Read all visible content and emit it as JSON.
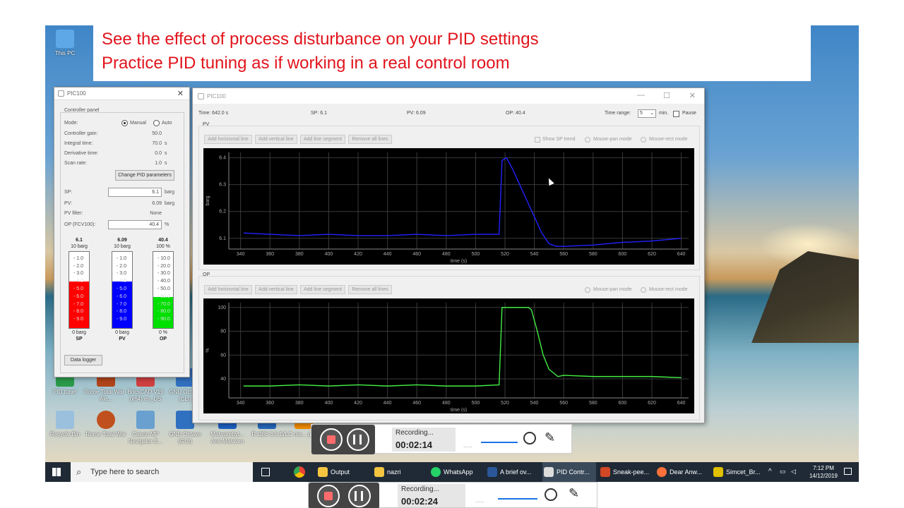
{
  "banner": {
    "line1": "See the effect of process disturbance on your PID settings",
    "line2": "Practice PID tuning as if working in a real control room"
  },
  "desktop_icons": [
    {
      "label": "This PC"
    },
    {
      "label": "PID tuner"
    },
    {
      "label": "Rome Total War - Ale..."
    },
    {
      "label": "BricsCAD V19 (x64) en_US"
    },
    {
      "label": "GNU Octave (CLI)"
    },
    {
      "label": "Recycle Bin"
    },
    {
      "label": "Rome Total War"
    },
    {
      "label": "Canon MP Navigator E..."
    },
    {
      "label": "GNU Octave (GUI)"
    },
    {
      "label": "Malwarebyt... Anti-Malware"
    },
    {
      "label": "R i386 3.6.1"
    },
    {
      "label": "VLC ma... playe..."
    }
  ],
  "small_window": {
    "title": "PIC100",
    "panel_label": "Controller panel",
    "mode_label": "Mode:",
    "mode_manual": "Manual",
    "mode_auto": "Auto",
    "gain_label": "Controller gain:",
    "gain_value": "50.0",
    "integral_label": "Integral time:",
    "integral_value": "70.0",
    "integral_unit": "s",
    "derivative_label": "Derivative time:",
    "derivative_value": "0.0",
    "derivative_unit": "s",
    "scan_label": "Scan rate:",
    "scan_value": "1.0",
    "scan_unit": "s",
    "change_pid_button": "Change PID parameters",
    "sp_label": "SP:",
    "sp_value": "6.1",
    "sp_unit": "barg",
    "pv_label": "PV:",
    "pv_value": "6.09",
    "pv_unit": "barg",
    "pv_filter_label": "PV filter:",
    "pv_filter_value": "None",
    "op_label": "OP (FCV100):",
    "op_value": "40.4",
    "op_unit": "%",
    "bars": [
      {
        "value": "6.1",
        "unit": "10 barg",
        "bottom": "0 barg",
        "name": "SP",
        "fill": 0.61,
        "color": "#ff0000",
        "ticks": [
          "9.0",
          "8.0",
          "7.0",
          "6.0",
          "5.0",
          "4.0",
          "3.0",
          "2.0",
          "1.0"
        ]
      },
      {
        "value": "6.09",
        "unit": "10 barg",
        "bottom": "0 barg",
        "name": "PV",
        "fill": 0.609,
        "color": "#0000ff",
        "ticks": [
          "9.0",
          "8.0",
          "7.0",
          "6.0",
          "5.0",
          "4.0",
          "3.0",
          "2.0",
          "1.0"
        ]
      },
      {
        "value": "40.4",
        "unit": "100 %",
        "bottom": "0 %",
        "name": "OP",
        "fill": 0.404,
        "color": "#00e000",
        "ticks": [
          "90.0",
          "80.0",
          "70.0",
          "60.0",
          "50.0",
          "40.0",
          "30.0",
          "20.0",
          "10.0"
        ]
      }
    ],
    "data_logger_button": "Data logger"
  },
  "big_window": {
    "title": "PIC100",
    "time_text": "Time: 642.0 s",
    "sp_text": "SP: 6.1",
    "pv_text": "PV: 6.09",
    "op_text": "OP: 40.4",
    "time_range_label": "Time range:",
    "time_range_value": "5",
    "time_range_unit": "min.",
    "pause_label": "Pause",
    "pv_group_label": "PV",
    "op_group_label": "OP",
    "toolbar_buttons": [
      "Add horizontal line",
      "Add vertical line",
      "Add line segment",
      "Remove all lines"
    ],
    "show_sp_trend": "Show SP trend",
    "mouse_pan": "Mouse-pan mode",
    "mouse_rect": "Mouse-rect mode"
  },
  "chart_data": [
    {
      "type": "line",
      "title": "PV",
      "xlabel": "time (s)",
      "ylabel": "barg",
      "xlim": [
        332,
        645
      ],
      "ylim": [
        6.06,
        6.42
      ],
      "x_ticks": [
        340,
        360,
        380,
        400,
        420,
        440,
        460,
        480,
        500,
        520,
        540,
        560,
        580,
        600,
        620,
        640
      ],
      "y_ticks": [
        6.1,
        6.2,
        6.3,
        6.4
      ],
      "series": [
        {
          "color": "#2222ff",
          "x": [
            342,
            360,
            380,
            400,
            420,
            440,
            460,
            480,
            500,
            516,
            518,
            521,
            525,
            530,
            535,
            540,
            545,
            550,
            555,
            560,
            580,
            600,
            620,
            640
          ],
          "y": [
            6.12,
            6.115,
            6.11,
            6.115,
            6.11,
            6.11,
            6.115,
            6.11,
            6.115,
            6.115,
            6.39,
            6.4,
            6.36,
            6.3,
            6.24,
            6.18,
            6.12,
            6.08,
            6.07,
            6.07,
            6.075,
            6.085,
            6.09,
            6.1
          ]
        }
      ]
    },
    {
      "type": "line",
      "title": "OP",
      "xlabel": "time (s)",
      "ylabel": "%",
      "xlim": [
        332,
        645
      ],
      "ylim": [
        24,
        104
      ],
      "x_ticks": [
        340,
        360,
        380,
        400,
        420,
        440,
        460,
        480,
        500,
        520,
        540,
        560,
        580,
        600,
        620,
        640
      ],
      "y_ticks": [
        40,
        60,
        80,
        100
      ],
      "series": [
        {
          "color": "#44ee44",
          "x": [
            342,
            360,
            380,
            400,
            420,
            440,
            460,
            480,
            500,
            516,
            518,
            536,
            538,
            542,
            546,
            550,
            556,
            560,
            580,
            600,
            620,
            640
          ],
          "y": [
            34,
            34,
            35,
            34,
            35,
            34,
            35,
            34,
            34,
            35,
            100,
            100,
            98,
            80,
            60,
            48,
            42,
            43,
            42,
            42,
            42,
            41
          ]
        }
      ]
    }
  ],
  "recorder1": {
    "label": "Recording...",
    "time": "00:02:14"
  },
  "recorder2": {
    "label": "Recording...",
    "time": "00:02:24"
  },
  "taskbar": {
    "search_placeholder": "Type here to search",
    "items": [
      "Output",
      "nazri",
      "WhatsApp",
      "A brief ov...",
      "PID Contr...",
      "Sneak-pee...",
      "Dear Anw...",
      "Simcet_Br..."
    ],
    "clock_time": "7:12 PM",
    "clock_date": "14/12/2019"
  }
}
